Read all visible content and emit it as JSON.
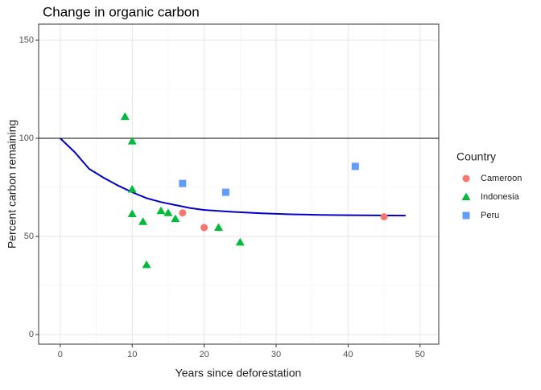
{
  "chart_data": {
    "type": "scatter",
    "title": "Change in organic carbon",
    "x_label": "Years since deforestation",
    "y_label": "Percent carbon remaining",
    "xlim": [
      -3,
      52.6
    ],
    "ylim": [
      -4.9,
      158.2
    ],
    "xticks": [
      0,
      10,
      20,
      30,
      40,
      50
    ],
    "yticks": [
      0,
      50,
      100,
      150
    ],
    "grid": true,
    "minor_grid": true,
    "hline": 100,
    "legend_title": "Country",
    "legend_position": "right",
    "series": [
      {
        "name": "Cameroon",
        "color": "#F8766D",
        "shape": "circle",
        "x": [
          17,
          20,
          45
        ],
        "values": [
          62,
          54.5,
          60
        ]
      },
      {
        "name": "Indonesia",
        "color": "#00BA38",
        "shape": "triangle",
        "x": [
          9,
          10,
          10,
          10,
          11.5,
          12,
          14,
          15,
          16,
          22,
          25
        ],
        "values": [
          111,
          98.5,
          74,
          61.5,
          57.5,
          35.5,
          63,
          62,
          59,
          54.5,
          47
        ]
      },
      {
        "name": "Peru",
        "color": "#619CFF",
        "shape": "square",
        "x": [
          17,
          23,
          41
        ],
        "values": [
          77,
          72.5,
          85.7
        ]
      }
    ],
    "curve": {
      "color": "#0000CD",
      "x": [
        0,
        2,
        4,
        6,
        8,
        10,
        12,
        14,
        16,
        18,
        20,
        24,
        28,
        32,
        36,
        40,
        44,
        48
      ],
      "values": [
        100,
        93,
        84.5,
        80,
        76,
        72.5,
        69.5,
        67.5,
        66,
        64.5,
        63.5,
        62.5,
        61.8,
        61.3,
        61,
        60.8,
        60.7,
        60.6
      ]
    }
  }
}
